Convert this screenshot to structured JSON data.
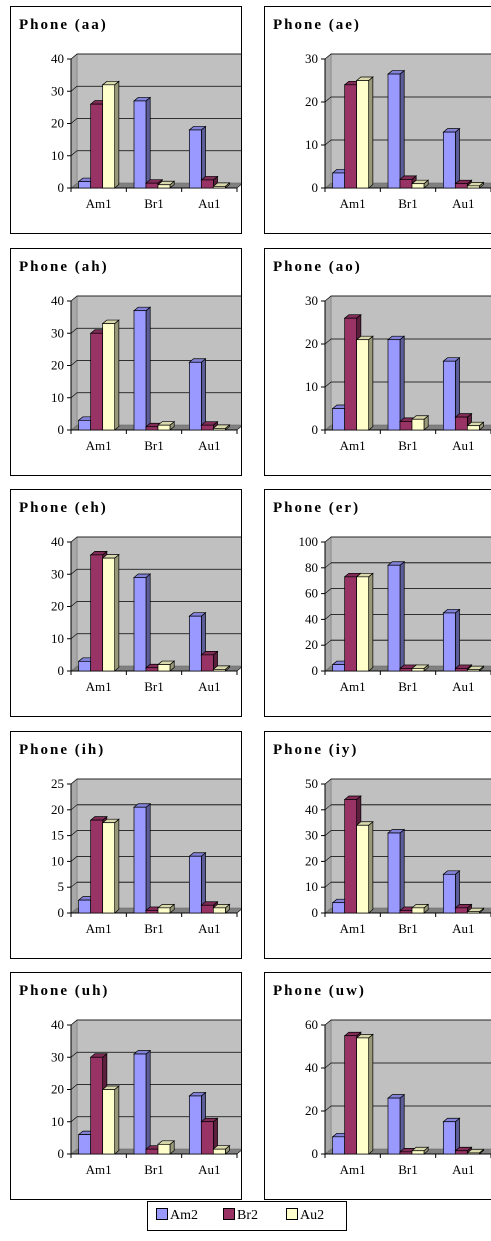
{
  "legend": {
    "series": [
      {
        "name": "Am2",
        "color": "#9999ff"
      },
      {
        "name": "Br2",
        "color": "#993366"
      },
      {
        "name": "Au2",
        "color": "#ffffcc"
      }
    ]
  },
  "chart_data": [
    {
      "type": "bar",
      "title": "Phone (aa)",
      "categories": [
        "Am1",
        "Br1",
        "Au1"
      ],
      "ylim": [
        0,
        40
      ],
      "yticks": [
        0,
        10,
        20,
        30,
        40
      ],
      "series": [
        {
          "name": "Am2",
          "values": [
            2,
            27,
            18
          ]
        },
        {
          "name": "Br2",
          "values": [
            26,
            1.5,
            2.5
          ]
        },
        {
          "name": "Au2",
          "values": [
            32,
            1,
            0.5
          ]
        }
      ]
    },
    {
      "type": "bar",
      "title": "Phone (ae)",
      "categories": [
        "Am1",
        "Br1",
        "Au1"
      ],
      "ylim": [
        0,
        30
      ],
      "yticks": [
        0,
        10,
        20,
        30
      ],
      "series": [
        {
          "name": "Am2",
          "values": [
            3.5,
            26.5,
            13
          ]
        },
        {
          "name": "Br2",
          "values": [
            24,
            2,
            1
          ]
        },
        {
          "name": "Au2",
          "values": [
            25,
            1,
            0.5
          ]
        }
      ]
    },
    {
      "type": "bar",
      "title": "Phone (ah)",
      "categories": [
        "Am1",
        "Br1",
        "Au1"
      ],
      "ylim": [
        0,
        40
      ],
      "yticks": [
        0,
        10,
        20,
        30,
        40
      ],
      "series": [
        {
          "name": "Am2",
          "values": [
            3,
            37,
            21
          ]
        },
        {
          "name": "Br2",
          "values": [
            30,
            1,
            1.5
          ]
        },
        {
          "name": "Au2",
          "values": [
            33,
            1.5,
            0.5
          ]
        }
      ]
    },
    {
      "type": "bar",
      "title": "Phone (ao)",
      "categories": [
        "Am1",
        "Br1",
        "Au1"
      ],
      "ylim": [
        0,
        30
      ],
      "yticks": [
        0,
        10,
        20,
        30
      ],
      "series": [
        {
          "name": "Am2",
          "values": [
            5,
            21,
            16
          ]
        },
        {
          "name": "Br2",
          "values": [
            26,
            2,
            3
          ]
        },
        {
          "name": "Au2",
          "values": [
            21,
            2.5,
            1
          ]
        }
      ]
    },
    {
      "type": "bar",
      "title": "Phone (eh)",
      "categories": [
        "Am1",
        "Br1",
        "Au1"
      ],
      "ylim": [
        0,
        40
      ],
      "yticks": [
        0,
        10,
        20,
        30,
        40
      ],
      "series": [
        {
          "name": "Am2",
          "values": [
            3,
            29,
            17
          ]
        },
        {
          "name": "Br2",
          "values": [
            36,
            1,
            5
          ]
        },
        {
          "name": "Au2",
          "values": [
            35,
            2,
            0.5
          ]
        }
      ]
    },
    {
      "type": "bar",
      "title": "Phone (er)",
      "categories": [
        "Am1",
        "Br1",
        "Au1"
      ],
      "ylim": [
        0,
        100
      ],
      "yticks": [
        0,
        20,
        40,
        60,
        80,
        100
      ],
      "series": [
        {
          "name": "Am2",
          "values": [
            5,
            82,
            45
          ]
        },
        {
          "name": "Br2",
          "values": [
            73,
            2,
            2
          ]
        },
        {
          "name": "Au2",
          "values": [
            73,
            2,
            1
          ]
        }
      ]
    },
    {
      "type": "bar",
      "title": "Phone (ih)",
      "categories": [
        "Am1",
        "Br1",
        "Au1"
      ],
      "ylim": [
        0,
        25
      ],
      "yticks": [
        0,
        5,
        10,
        15,
        20,
        25
      ],
      "series": [
        {
          "name": "Am2",
          "values": [
            2.5,
            20.5,
            11
          ]
        },
        {
          "name": "Br2",
          "values": [
            18,
            0.5,
            1.5
          ]
        },
        {
          "name": "Au2",
          "values": [
            17.5,
            1,
            1
          ]
        }
      ]
    },
    {
      "type": "bar",
      "title": "Phone (iy)",
      "categories": [
        "Am1",
        "Br1",
        "Au1"
      ],
      "ylim": [
        0,
        50
      ],
      "yticks": [
        0,
        10,
        20,
        30,
        40,
        50
      ],
      "series": [
        {
          "name": "Am2",
          "values": [
            4,
            31,
            15
          ]
        },
        {
          "name": "Br2",
          "values": [
            44,
            1,
            2
          ]
        },
        {
          "name": "Au2",
          "values": [
            34,
            2,
            0.5
          ]
        }
      ]
    },
    {
      "type": "bar",
      "title": "Phone (uh)",
      "categories": [
        "Am1",
        "Br1",
        "Au1"
      ],
      "ylim": [
        0,
        40
      ],
      "yticks": [
        0,
        10,
        20,
        30,
        40
      ],
      "series": [
        {
          "name": "Am2",
          "values": [
            6,
            31,
            18
          ]
        },
        {
          "name": "Br2",
          "values": [
            30,
            1.5,
            10
          ]
        },
        {
          "name": "Au2",
          "values": [
            20,
            3,
            1.5
          ]
        }
      ]
    },
    {
      "type": "bar",
      "title": "Phone (uw)",
      "categories": [
        "Am1",
        "Br1",
        "Au1"
      ],
      "ylim": [
        0,
        60
      ],
      "yticks": [
        0,
        20,
        40,
        60
      ],
      "series": [
        {
          "name": "Am2",
          "values": [
            8,
            26,
            15
          ]
        },
        {
          "name": "Br2",
          "values": [
            55,
            1,
            1.5
          ]
        },
        {
          "name": "Au2",
          "values": [
            54,
            1.5,
            0.5
          ]
        }
      ]
    }
  ]
}
